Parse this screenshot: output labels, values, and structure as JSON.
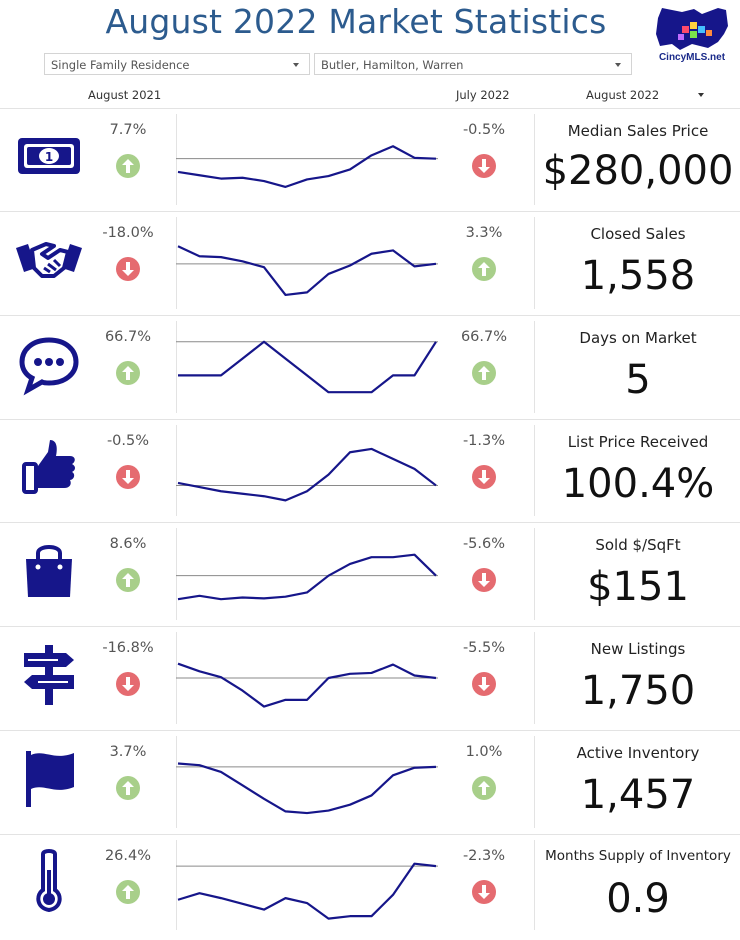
{
  "title": "August 2022 Market Statistics",
  "logo_text": "CincyMLS.net",
  "filters": {
    "property_type": "Single Family Residence",
    "counties": "Butler, Hamilton, Warren"
  },
  "columns": {
    "left": "August 2021",
    "middle": "July 2022",
    "right": "August 2022"
  },
  "colors": {
    "navy": "#16168a",
    "up": "#a8cf8a",
    "down": "#e56b70",
    "title": "#2c5b8e"
  },
  "metrics": [
    {
      "icon": "money-icon",
      "label": "Median Sales Price",
      "value": "$280,000",
      "yoy_change": "7.7%",
      "yoy_direction": "up",
      "mom_change": "-0.5%",
      "mom_direction": "down",
      "trend": [
        35,
        31,
        27,
        28,
        24,
        17,
        26,
        30,
        38,
        55,
        66,
        52,
        51
      ]
    },
    {
      "icon": "handshake-icon",
      "label": "Closed Sales",
      "value": "1,558",
      "yoy_change": "-18.0%",
      "yoy_direction": "down",
      "mom_change": "3.3%",
      "mom_direction": "up",
      "trend": [
        70,
        58,
        57,
        52,
        45,
        12,
        15,
        37,
        47,
        61,
        65,
        46,
        49
      ]
    },
    {
      "icon": "chat-icon",
      "label": "Days on Market",
      "value": "5",
      "yoy_change": "66.7%",
      "yoy_direction": "up",
      "mom_change": "66.7%",
      "mom_direction": "up",
      "trend": [
        40,
        40,
        40,
        60,
        80,
        60,
        40,
        20,
        20,
        20,
        40,
        40,
        80
      ]
    },
    {
      "icon": "thumbs-up-icon",
      "label": "List Price Received",
      "value": "100.4%",
      "yoy_change": "-0.5%",
      "yoy_direction": "down",
      "mom_change": "-1.3%",
      "mom_direction": "down",
      "trend": [
        35,
        30,
        25,
        22,
        19,
        14,
        25,
        45,
        72,
        76,
        64,
        52,
        32
      ]
    },
    {
      "icon": "shopping-bag-icon",
      "label": "Sold $/SqFt",
      "value": "$151",
      "yoy_change": "8.6%",
      "yoy_direction": "up",
      "mom_change": "-5.6%",
      "mom_direction": "down",
      "trend": [
        20,
        24,
        20,
        22,
        21,
        23,
        28,
        48,
        62,
        70,
        70,
        73,
        48
      ]
    },
    {
      "icon": "signpost-icon",
      "label": "New Listings",
      "value": "1,750",
      "yoy_change": "-16.8%",
      "yoy_direction": "down",
      "mom_change": "-5.5%",
      "mom_direction": "down",
      "trend": [
        67,
        58,
        51,
        35,
        16,
        24,
        24,
        50,
        55,
        56,
        66,
        53,
        50
      ]
    },
    {
      "icon": "flag-icon",
      "label": "Active Inventory",
      "value": "1,457",
      "yoy_change": "3.7%",
      "yoy_direction": "up",
      "mom_change": "1.0%",
      "mom_direction": "up",
      "trend": [
        72,
        70,
        62,
        46,
        30,
        15,
        13,
        16,
        23,
        34,
        58,
        67,
        68
      ]
    },
    {
      "icon": "thermometer-icon",
      "label": "Months Supply of Inventory",
      "value": "0.9",
      "yoy_change": "26.4%",
      "yoy_direction": "up",
      "mom_change": "-2.3%",
      "mom_direction": "down",
      "trend": [
        32,
        40,
        34,
        27,
        20,
        34,
        28,
        9,
        12,
        12,
        38,
        76,
        73
      ]
    }
  ]
}
